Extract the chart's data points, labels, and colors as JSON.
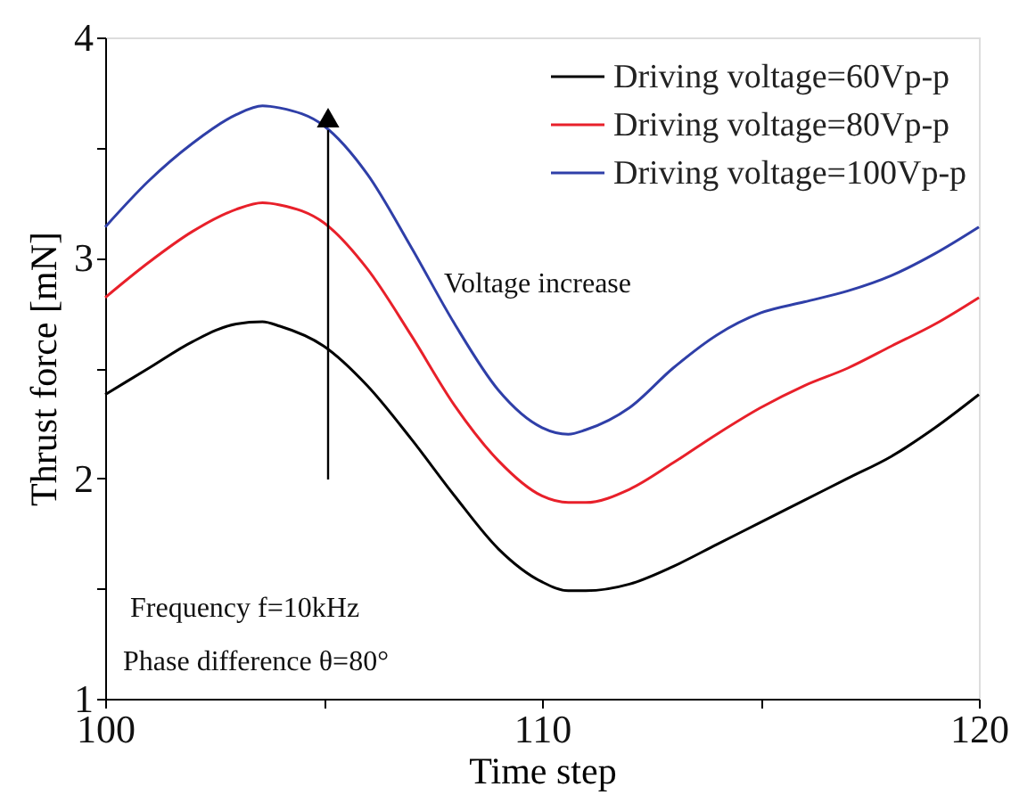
{
  "chart_data": {
    "type": "line",
    "xlabel": "Time step",
    "ylabel": "Thrust force [mN]",
    "x": [
      100,
      101,
      102,
      103,
      103.6,
      104,
      105,
      106,
      107,
      108,
      109,
      110,
      110.6,
      111,
      112,
      113,
      114,
      115,
      116,
      117,
      118,
      119,
      120
    ],
    "series": [
      {
        "name": "Driving voltage=60Vp-p",
        "color": "#000000",
        "values": [
          2.38,
          2.5,
          2.62,
          2.7,
          2.71,
          2.69,
          2.6,
          2.42,
          2.18,
          1.92,
          1.68,
          1.53,
          1.49,
          1.49,
          1.52,
          1.6,
          1.7,
          1.8,
          1.9,
          2.0,
          2.1,
          2.23,
          2.38
        ]
      },
      {
        "name": "Driving voltage=80Vp-p",
        "color": "#e8202a",
        "values": [
          2.82,
          2.98,
          3.12,
          3.22,
          3.25,
          3.24,
          3.16,
          2.95,
          2.65,
          2.33,
          2.08,
          1.92,
          1.89,
          1.89,
          1.95,
          2.07,
          2.2,
          2.32,
          2.42,
          2.5,
          2.6,
          2.7,
          2.82
        ]
      },
      {
        "name": "Driving voltage=100Vp-p",
        "color": "#2f3fa8",
        "values": [
          3.14,
          3.35,
          3.52,
          3.65,
          3.69,
          3.68,
          3.6,
          3.38,
          3.05,
          2.7,
          2.4,
          2.23,
          2.2,
          2.22,
          2.32,
          2.5,
          2.65,
          2.75,
          2.8,
          2.85,
          2.92,
          3.02,
          3.14
        ]
      }
    ],
    "xlim": [
      100,
      120
    ],
    "ylim": [
      1,
      4
    ],
    "xticks": [
      100,
      {
        "value": 105,
        "label": null
      },
      110,
      {
        "value": 115,
        "label": null
      },
      120
    ],
    "yticks": [
      1,
      {
        "value": 1.5,
        "label": null
      },
      2,
      {
        "value": 2.5,
        "label": null
      },
      3,
      {
        "value": 3.5,
        "label": null
      },
      4
    ],
    "annotations": [
      "Voltage increase",
      "Frequency f=10kHz",
      "Phase difference θ=80°"
    ],
    "legend": "top right",
    "grid": false,
    "line_style": "solid",
    "marker": "none"
  }
}
